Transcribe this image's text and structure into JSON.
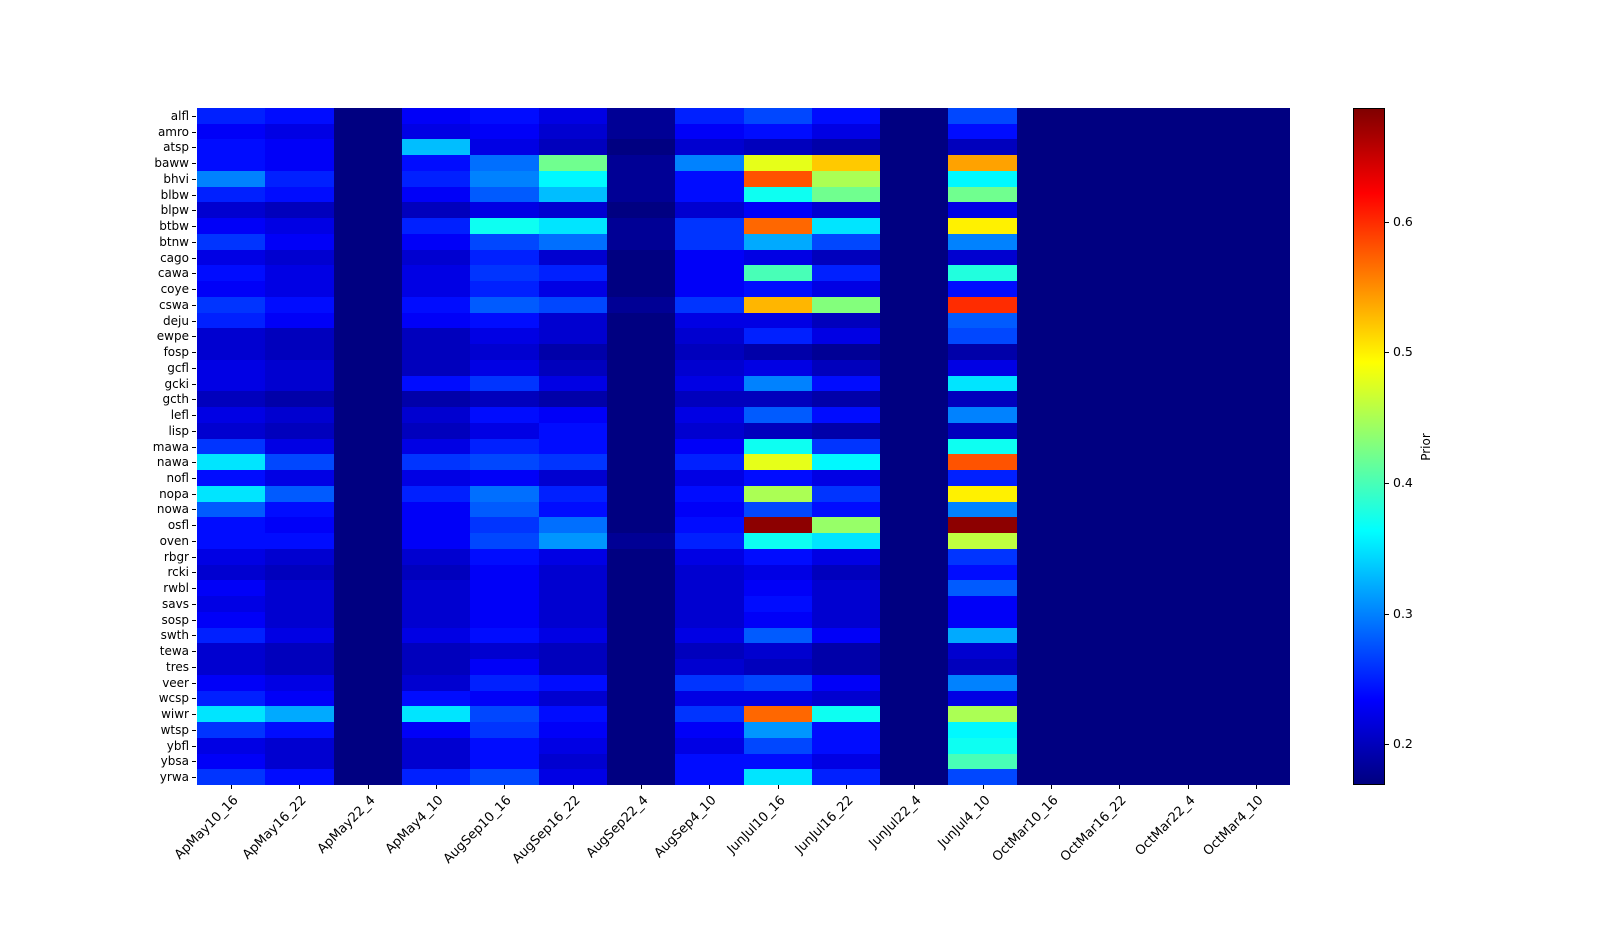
{
  "chart_data": {
    "type": "heatmap",
    "colormap": "jet",
    "title": "",
    "xlabel": "",
    "ylabel": "",
    "colorbar_label": "Prior",
    "vmin": 0.169,
    "vmax": 0.687,
    "colorbar_ticks": [
      0.2,
      0.3,
      0.4,
      0.5,
      0.6
    ],
    "x_categories": [
      "ApMay10_16",
      "ApMay16_22",
      "ApMay22_4",
      "ApMay4_10",
      "AugSep10_16",
      "AugSep16_22",
      "AugSep22_4",
      "AugSep4_10",
      "JunJul10_16",
      "JunJul16_22",
      "JunJul22_4",
      "JunJul4_10",
      "OctMar10_16",
      "OctMar16_22",
      "OctMar22_4",
      "OctMar4_10"
    ],
    "y_categories": [
      "alfl",
      "amro",
      "atsp",
      "baww",
      "bhvi",
      "blbw",
      "blpw",
      "btbw",
      "btnw",
      "cago",
      "cawa",
      "coye",
      "cswa",
      "deju",
      "ewpe",
      "fosp",
      "gcfl",
      "gcki",
      "gcth",
      "lefl",
      "lisp",
      "mawa",
      "nawa",
      "nofl",
      "nopa",
      "nowa",
      "osfl",
      "oven",
      "rbgr",
      "rcki",
      "rwbl",
      "savs",
      "sosp",
      "swth",
      "tewa",
      "tres",
      "veer",
      "wcsp",
      "wiwr",
      "wtsp",
      "ybfl",
      "ybsa",
      "yrwa"
    ],
    "values": [
      [
        0.25,
        0.24,
        0.17,
        0.23,
        0.24,
        0.22,
        0.18,
        0.25,
        0.27,
        0.24,
        0.17,
        0.27,
        0.17,
        0.17,
        0.17,
        0.17
      ],
      [
        0.23,
        0.22,
        0.17,
        0.22,
        0.23,
        0.21,
        0.18,
        0.23,
        0.24,
        0.22,
        0.17,
        0.24,
        0.17,
        0.17,
        0.17,
        0.17
      ],
      [
        0.24,
        0.23,
        0.17,
        0.33,
        0.22,
        0.2,
        0.17,
        0.21,
        0.2,
        0.19,
        0.17,
        0.2,
        0.17,
        0.17,
        0.17,
        0.17
      ],
      [
        0.24,
        0.23,
        0.17,
        0.24,
        0.29,
        0.42,
        0.18,
        0.3,
        0.48,
        0.52,
        0.17,
        0.54,
        0.17,
        0.17,
        0.17,
        0.17
      ],
      [
        0.3,
        0.25,
        0.17,
        0.25,
        0.3,
        0.36,
        0.18,
        0.24,
        0.58,
        0.45,
        0.17,
        0.36,
        0.17,
        0.17,
        0.17,
        0.17
      ],
      [
        0.25,
        0.24,
        0.17,
        0.23,
        0.28,
        0.33,
        0.18,
        0.24,
        0.37,
        0.42,
        0.17,
        0.42,
        0.17,
        0.17,
        0.17,
        0.17
      ],
      [
        0.21,
        0.2,
        0.17,
        0.2,
        0.22,
        0.21,
        0.17,
        0.21,
        0.23,
        0.21,
        0.17,
        0.22,
        0.17,
        0.17,
        0.17,
        0.17
      ],
      [
        0.23,
        0.22,
        0.17,
        0.25,
        0.37,
        0.35,
        0.18,
        0.26,
        0.57,
        0.35,
        0.17,
        0.5,
        0.17,
        0.17,
        0.17,
        0.17
      ],
      [
        0.26,
        0.23,
        0.17,
        0.23,
        0.27,
        0.29,
        0.18,
        0.26,
        0.32,
        0.27,
        0.17,
        0.3,
        0.17,
        0.17,
        0.17,
        0.17
      ],
      [
        0.22,
        0.21,
        0.17,
        0.21,
        0.25,
        0.21,
        0.17,
        0.23,
        0.22,
        0.2,
        0.17,
        0.21,
        0.17,
        0.17,
        0.17,
        0.17
      ],
      [
        0.24,
        0.22,
        0.17,
        0.22,
        0.26,
        0.25,
        0.17,
        0.23,
        0.4,
        0.25,
        0.17,
        0.38,
        0.17,
        0.17,
        0.17,
        0.17
      ],
      [
        0.23,
        0.22,
        0.17,
        0.22,
        0.25,
        0.22,
        0.17,
        0.23,
        0.24,
        0.22,
        0.17,
        0.24,
        0.17,
        0.17,
        0.17,
        0.17
      ],
      [
        0.26,
        0.24,
        0.17,
        0.24,
        0.28,
        0.27,
        0.18,
        0.26,
        0.53,
        0.43,
        0.17,
        0.6,
        0.17,
        0.17,
        0.17,
        0.17
      ],
      [
        0.25,
        0.23,
        0.17,
        0.23,
        0.24,
        0.21,
        0.17,
        0.22,
        0.22,
        0.2,
        0.17,
        0.28,
        0.17,
        0.17,
        0.17,
        0.17
      ],
      [
        0.21,
        0.2,
        0.17,
        0.2,
        0.22,
        0.21,
        0.17,
        0.21,
        0.25,
        0.22,
        0.17,
        0.27,
        0.17,
        0.17,
        0.17,
        0.17
      ],
      [
        0.21,
        0.2,
        0.17,
        0.2,
        0.21,
        0.19,
        0.17,
        0.2,
        0.19,
        0.18,
        0.17,
        0.19,
        0.17,
        0.17,
        0.17,
        0.17
      ],
      [
        0.22,
        0.21,
        0.17,
        0.2,
        0.22,
        0.2,
        0.17,
        0.21,
        0.22,
        0.2,
        0.17,
        0.22,
        0.17,
        0.17,
        0.17,
        0.17
      ],
      [
        0.22,
        0.21,
        0.17,
        0.24,
        0.26,
        0.22,
        0.17,
        0.22,
        0.3,
        0.24,
        0.17,
        0.35,
        0.17,
        0.17,
        0.17,
        0.17
      ],
      [
        0.2,
        0.19,
        0.17,
        0.19,
        0.2,
        0.19,
        0.17,
        0.2,
        0.2,
        0.19,
        0.17,
        0.2,
        0.17,
        0.17,
        0.17,
        0.17
      ],
      [
        0.22,
        0.21,
        0.17,
        0.21,
        0.24,
        0.23,
        0.17,
        0.22,
        0.28,
        0.24,
        0.17,
        0.3,
        0.17,
        0.17,
        0.17,
        0.17
      ],
      [
        0.21,
        0.2,
        0.17,
        0.2,
        0.22,
        0.24,
        0.17,
        0.21,
        0.2,
        0.19,
        0.17,
        0.2,
        0.17,
        0.17,
        0.17,
        0.17
      ],
      [
        0.26,
        0.22,
        0.17,
        0.22,
        0.25,
        0.24,
        0.17,
        0.23,
        0.37,
        0.26,
        0.17,
        0.37,
        0.17,
        0.17,
        0.17,
        0.17
      ],
      [
        0.35,
        0.27,
        0.17,
        0.26,
        0.27,
        0.26,
        0.17,
        0.25,
        0.48,
        0.36,
        0.17,
        0.58,
        0.17,
        0.17,
        0.17,
        0.17
      ],
      [
        0.24,
        0.22,
        0.17,
        0.22,
        0.23,
        0.21,
        0.17,
        0.22,
        0.24,
        0.22,
        0.17,
        0.25,
        0.17,
        0.17,
        0.17,
        0.17
      ],
      [
        0.35,
        0.28,
        0.17,
        0.25,
        0.29,
        0.25,
        0.17,
        0.24,
        0.45,
        0.26,
        0.17,
        0.5,
        0.17,
        0.17,
        0.17,
        0.17
      ],
      [
        0.28,
        0.24,
        0.17,
        0.23,
        0.28,
        0.24,
        0.17,
        0.23,
        0.27,
        0.24,
        0.17,
        0.3,
        0.17,
        0.17,
        0.17,
        0.17
      ],
      [
        0.24,
        0.23,
        0.17,
        0.23,
        0.26,
        0.29,
        0.17,
        0.24,
        0.68,
        0.44,
        0.17,
        0.68,
        0.17,
        0.17,
        0.17,
        0.17
      ],
      [
        0.24,
        0.24,
        0.17,
        0.23,
        0.27,
        0.31,
        0.18,
        0.25,
        0.37,
        0.35,
        0.17,
        0.46,
        0.17,
        0.17,
        0.17,
        0.17
      ],
      [
        0.22,
        0.21,
        0.17,
        0.21,
        0.24,
        0.22,
        0.17,
        0.22,
        0.24,
        0.22,
        0.17,
        0.26,
        0.17,
        0.17,
        0.17,
        0.17
      ],
      [
        0.21,
        0.2,
        0.17,
        0.2,
        0.23,
        0.21,
        0.17,
        0.21,
        0.22,
        0.2,
        0.17,
        0.24,
        0.17,
        0.17,
        0.17,
        0.17
      ],
      [
        0.23,
        0.21,
        0.17,
        0.21,
        0.23,
        0.21,
        0.17,
        0.21,
        0.23,
        0.21,
        0.17,
        0.28,
        0.17,
        0.17,
        0.17,
        0.17
      ],
      [
        0.22,
        0.21,
        0.17,
        0.21,
        0.23,
        0.21,
        0.17,
        0.21,
        0.24,
        0.21,
        0.17,
        0.23,
        0.17,
        0.17,
        0.17,
        0.17
      ],
      [
        0.23,
        0.21,
        0.17,
        0.21,
        0.23,
        0.21,
        0.17,
        0.21,
        0.23,
        0.21,
        0.17,
        0.23,
        0.17,
        0.17,
        0.17,
        0.17
      ],
      [
        0.25,
        0.22,
        0.17,
        0.22,
        0.24,
        0.22,
        0.17,
        0.22,
        0.28,
        0.23,
        0.17,
        0.32,
        0.17,
        0.17,
        0.17,
        0.17
      ],
      [
        0.21,
        0.2,
        0.17,
        0.2,
        0.21,
        0.2,
        0.17,
        0.2,
        0.21,
        0.19,
        0.17,
        0.21,
        0.17,
        0.17,
        0.17,
        0.17
      ],
      [
        0.21,
        0.2,
        0.17,
        0.2,
        0.23,
        0.2,
        0.17,
        0.21,
        0.2,
        0.19,
        0.17,
        0.2,
        0.17,
        0.17,
        0.17,
        0.17
      ],
      [
        0.23,
        0.22,
        0.17,
        0.21,
        0.25,
        0.24,
        0.17,
        0.26,
        0.27,
        0.23,
        0.17,
        0.3,
        0.17,
        0.17,
        0.17,
        0.17
      ],
      [
        0.25,
        0.23,
        0.17,
        0.24,
        0.23,
        0.21,
        0.17,
        0.22,
        0.22,
        0.21,
        0.17,
        0.22,
        0.17,
        0.17,
        0.17,
        0.17
      ],
      [
        0.35,
        0.32,
        0.17,
        0.35,
        0.27,
        0.24,
        0.17,
        0.26,
        0.57,
        0.37,
        0.17,
        0.45,
        0.17,
        0.17,
        0.17,
        0.17
      ],
      [
        0.26,
        0.24,
        0.17,
        0.23,
        0.26,
        0.23,
        0.17,
        0.23,
        0.31,
        0.24,
        0.17,
        0.36,
        0.17,
        0.17,
        0.17,
        0.17
      ],
      [
        0.22,
        0.21,
        0.17,
        0.21,
        0.24,
        0.22,
        0.17,
        0.22,
        0.27,
        0.24,
        0.17,
        0.37,
        0.17,
        0.17,
        0.17,
        0.17
      ],
      [
        0.23,
        0.21,
        0.17,
        0.21,
        0.24,
        0.21,
        0.17,
        0.24,
        0.24,
        0.22,
        0.17,
        0.4,
        0.17,
        0.17,
        0.17,
        0.17
      ],
      [
        0.26,
        0.24,
        0.17,
        0.25,
        0.27,
        0.22,
        0.17,
        0.24,
        0.35,
        0.25,
        0.17,
        0.27,
        0.17,
        0.17,
        0.17,
        0.17
      ]
    ]
  }
}
